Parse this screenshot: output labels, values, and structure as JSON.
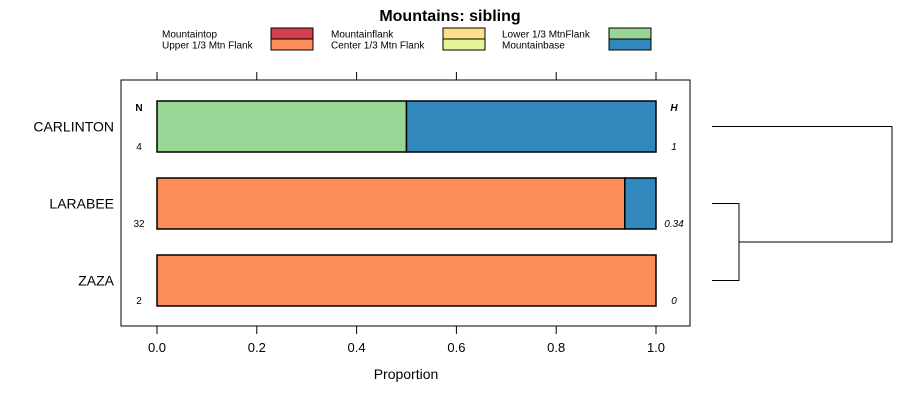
{
  "chart_data": {
    "type": "bar",
    "orientation": "horizontal",
    "stacked": true,
    "title": "Mountains: sibling",
    "xlabel": "Proportion",
    "ylabel": "",
    "xlim": [
      -0.07,
      1.07
    ],
    "x_ticks": [
      0.0,
      0.2,
      0.4,
      0.6,
      0.8,
      1.0
    ],
    "x_tick_labels": [
      "0.0",
      "0.2",
      "0.4",
      "0.6",
      "0.8",
      "1.0"
    ],
    "categories": [
      "CARLINTON",
      "LARABEE",
      "ZAZA"
    ],
    "series": [
      {
        "name": "Mountaintop",
        "color": "#d53e4f",
        "values": [
          0,
          0,
          0
        ]
      },
      {
        "name": "Upper 1/3 Mtn Flank",
        "color": "#fc8d59",
        "values": [
          0,
          0.9375,
          1.0
        ]
      },
      {
        "name": "Mountainflank",
        "color": "#fee08b",
        "values": [
          0,
          0,
          0
        ]
      },
      {
        "name": "Center 1/3 Mtn Flank",
        "color": "#e6f598",
        "values": [
          0,
          0,
          0
        ]
      },
      {
        "name": "Lower 1/3 MtnFlank",
        "color": "#99d594",
        "values": [
          0.5,
          0,
          0
        ]
      },
      {
        "name": "Mountainbase",
        "color": "#3288bd",
        "values": [
          0.5,
          0.0625,
          0
        ]
      }
    ],
    "n_header": "N",
    "h_header": "H",
    "n_values": [
      "4",
      "32",
      "2"
    ],
    "h_values": [
      "1",
      "0.34",
      "0"
    ],
    "dendrogram": {
      "leaf_order": [
        "CARLINTON",
        "LARABEE",
        "ZAZA"
      ],
      "merges": [
        {
          "left": "LARABEE",
          "right": "ZAZA",
          "height": 0.15
        },
        {
          "left": "CARLINTON",
          "right": "LARABEE+ZAZA",
          "height": 1.0
        }
      ]
    }
  }
}
